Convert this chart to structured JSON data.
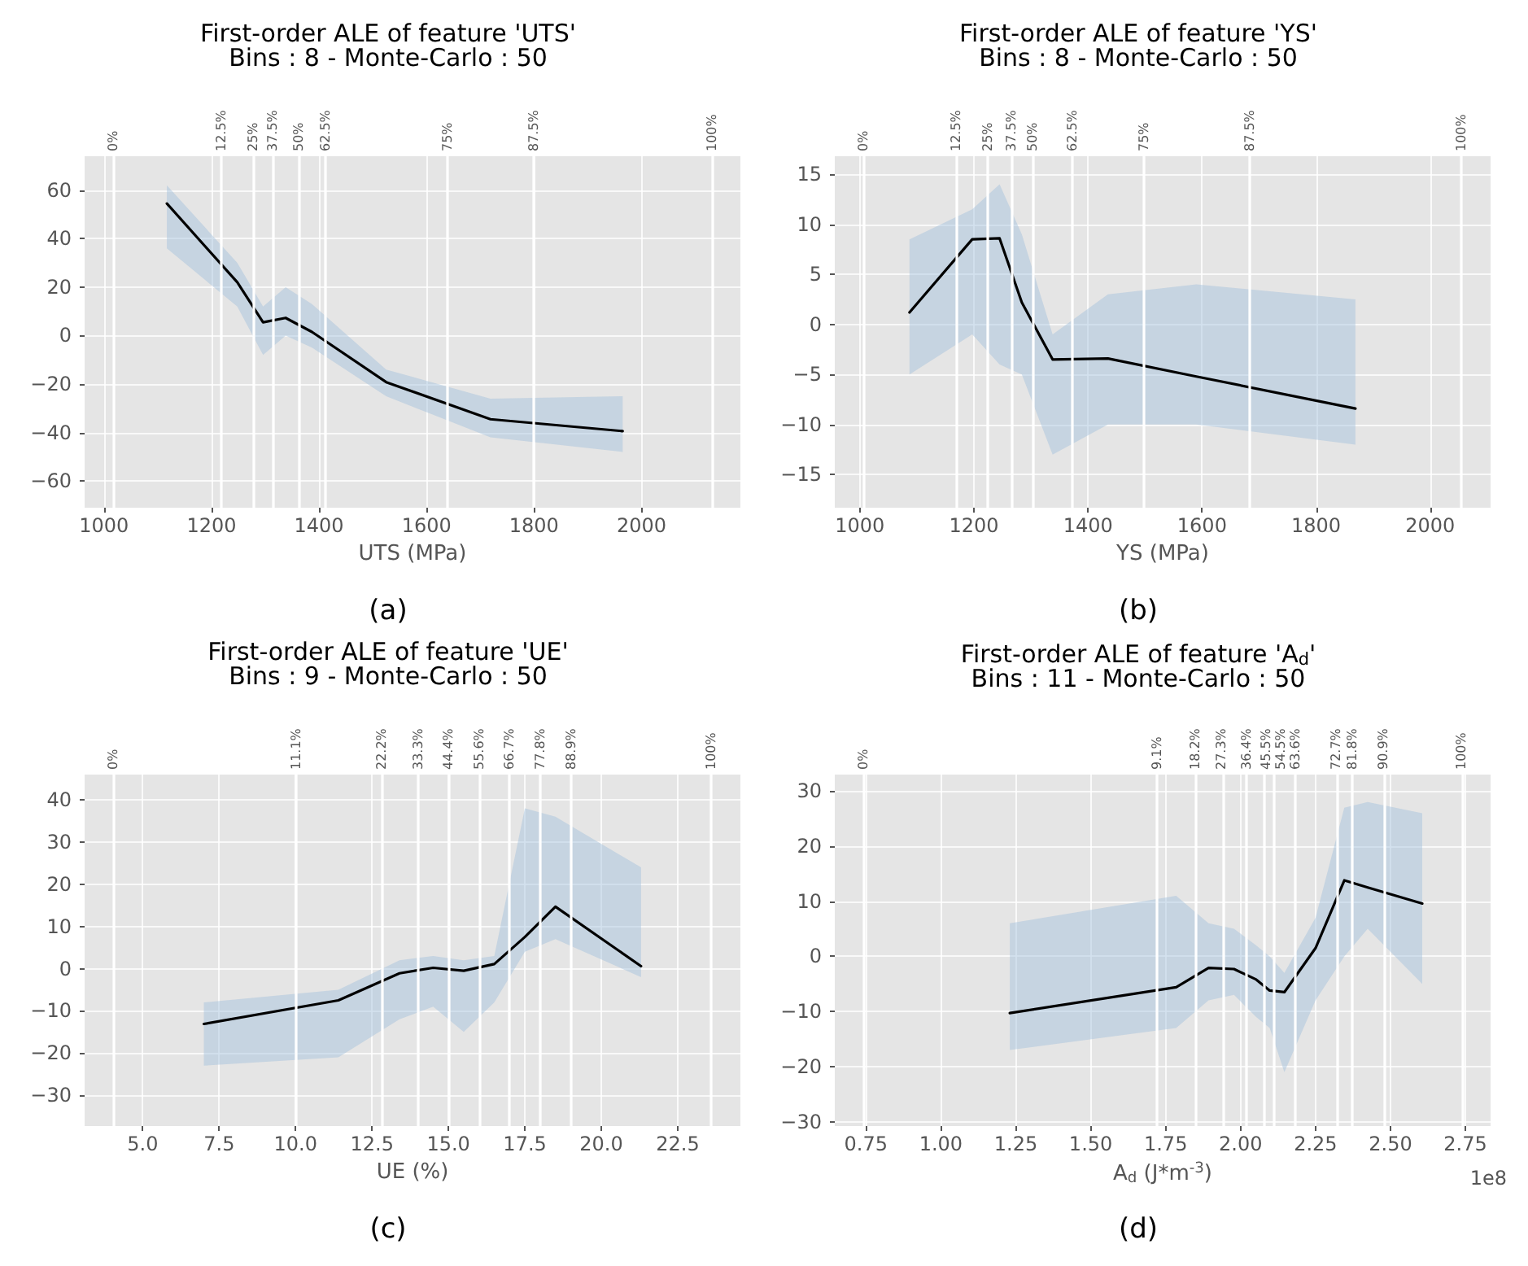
{
  "chart_data": [
    {
      "type": "line",
      "title": "First-order ALE of feature 'UTS'",
      "subtitle": "Bins : 8 - Monte-Carlo : 50",
      "xlabel": "UTS (MPa)",
      "grid": true,
      "xlim": [
        964,
        2184
      ],
      "xticks": [
        1000,
        1200,
        1400,
        1600,
        1800,
        2000
      ],
      "ylim": [
        -71,
        74
      ],
      "yticks": [
        {
          "value": -60,
          "label": "−60"
        },
        {
          "value": -40,
          "label": "−40"
        },
        {
          "value": -20,
          "label": "−20"
        },
        0,
        20,
        40,
        60
      ],
      "ref_lines": [
        {
          "axis": "x",
          "value": 1017,
          "color": "#ffffff"
        },
        {
          "axis": "x",
          "value": 1218,
          "color": "#ffffff"
        },
        {
          "axis": "x",
          "value": 1278,
          "color": "#ffffff"
        },
        {
          "axis": "x",
          "value": 1313,
          "color": "#ffffff"
        },
        {
          "axis": "x",
          "value": 1362,
          "color": "#ffffff"
        },
        {
          "axis": "x",
          "value": 1412,
          "color": "#ffffff"
        },
        {
          "axis": "x",
          "value": 1639,
          "color": "#ffffff"
        },
        {
          "axis": "x",
          "value": 1799,
          "color": "#ffffff"
        },
        {
          "axis": "x",
          "value": 2131,
          "color": "#ffffff"
        }
      ],
      "annotations": [
        "(a)",
        {
          "text": "0%",
          "x": 1017,
          "y": 74
        },
        {
          "text": "12.5%",
          "x": 1218,
          "y": 74
        },
        {
          "text": "25%",
          "x": 1278,
          "y": 74
        },
        {
          "text": "37.5%",
          "x": 1313,
          "y": 74
        },
        {
          "text": "50%",
          "x": 1362,
          "y": 74
        },
        {
          "text": "62.5%",
          "x": 1412,
          "y": 74
        },
        {
          "text": "75%",
          "x": 1639,
          "y": 74
        },
        {
          "text": "87.5%",
          "x": 1799,
          "y": 74
        },
        {
          "text": "100%",
          "x": 2131,
          "y": 74
        }
      ],
      "series": [
        {
          "color": "#000000",
          "x": [
            1117,
            1248,
            1296,
            1338,
            1387,
            1525,
            1719,
            1965
          ],
          "values": [
            54.5,
            22,
            5.5,
            7.3,
            1.5,
            -19.2,
            -34.5,
            -39.4
          ],
          "lower": [
            36,
            12,
            -8,
            0,
            -5,
            -25,
            -42,
            -48
          ],
          "upper": [
            62,
            30,
            12,
            20,
            13,
            -14,
            -26,
            -25
          ]
        }
      ]
    },
    {
      "type": "line",
      "title": "First-order ALE of feature 'YS'",
      "subtitle": "Bins : 8 - Monte-Carlo : 50",
      "xlabel": "YS (MPa)",
      "grid": true,
      "xlim": [
        956,
        2106
      ],
      "xticks": [
        1000,
        1200,
        1400,
        1600,
        1800,
        2000
      ],
      "ylim": [
        -18.3,
        16.8
      ],
      "yticks": [
        {
          "value": -15,
          "label": "−15"
        },
        {
          "value": -10,
          "label": "−10"
        },
        {
          "value": -5,
          "label": "−5"
        },
        0,
        5,
        10,
        15
      ],
      "ref_lines": [
        {
          "axis": "x",
          "value": 1006,
          "color": "#ffffff"
        },
        {
          "axis": "x",
          "value": 1169,
          "color": "#ffffff"
        },
        {
          "axis": "x",
          "value": 1224,
          "color": "#ffffff"
        },
        {
          "axis": "x",
          "value": 1265,
          "color": "#ffffff"
        },
        {
          "axis": "x",
          "value": 1303,
          "color": "#ffffff"
        },
        {
          "axis": "x",
          "value": 1372,
          "color": "#ffffff"
        },
        {
          "axis": "x",
          "value": 1498,
          "color": "#ffffff"
        },
        {
          "axis": "x",
          "value": 1683,
          "color": "#ffffff"
        },
        {
          "axis": "x",
          "value": 2055,
          "color": "#ffffff"
        }
      ],
      "annotations": [
        "(b)",
        {
          "text": "0%",
          "x": 1006,
          "y": 16.8
        },
        {
          "text": "12.5%",
          "x": 1169,
          "y": 16.8
        },
        {
          "text": "25%",
          "x": 1224,
          "y": 16.8
        },
        {
          "text": "37.5%",
          "x": 1265,
          "y": 16.8
        },
        {
          "text": "50%",
          "x": 1303,
          "y": 16.8
        },
        {
          "text": "62.5%",
          "x": 1372,
          "y": 16.8
        },
        {
          "text": "75%",
          "x": 1498,
          "y": 16.8
        },
        {
          "text": "87.5%",
          "x": 1683,
          "y": 16.8
        },
        {
          "text": "100%",
          "x": 2055,
          "y": 16.8
        }
      ],
      "series": [
        {
          "color": "#000000",
          "x": [
            1087,
            1197,
            1245,
            1284,
            1338,
            1435,
            1590,
            1869
          ],
          "values": [
            1.2,
            8.5,
            8.6,
            2.2,
            -3.5,
            -3.4,
            -5.2,
            -8.4
          ],
          "lower": [
            -5,
            -1,
            -4,
            -5,
            -13,
            -10,
            -10,
            -12
          ],
          "upper": [
            8.5,
            11.5,
            14,
            9,
            -1,
            3,
            4,
            2.5
          ]
        }
      ]
    },
    {
      "type": "line",
      "title": "First-order ALE of feature 'UE'",
      "subtitle": "Bins : 9 - Monte-Carlo : 50",
      "xlabel": "UE (%)",
      "grid": true,
      "xlim": [
        3.1,
        24.55
      ],
      "xticks": [
        {
          "value": 5,
          "label": "5.0"
        },
        7.5,
        {
          "value": 10,
          "label": "10.0"
        },
        12.5,
        {
          "value": 15,
          "label": "15.0"
        },
        17.5,
        {
          "value": 20,
          "label": "20.0"
        },
        22.5
      ],
      "ylim": [
        -37.3,
        46
      ],
      "yticks": [
        {
          "value": -30,
          "label": "−30"
        },
        {
          "value": -20,
          "label": "−20"
        },
        {
          "value": -10,
          "label": "−10"
        },
        0,
        10,
        20,
        30,
        40
      ],
      "ref_lines": [
        {
          "axis": "x",
          "value": 4.03,
          "color": "#ffffff"
        },
        {
          "axis": "x",
          "value": 10.02,
          "color": "#ffffff"
        },
        {
          "axis": "x",
          "value": 12.82,
          "color": "#ffffff"
        },
        {
          "axis": "x",
          "value": 14.01,
          "color": "#ffffff"
        },
        {
          "axis": "x",
          "value": 15,
          "color": "#ffffff"
        },
        {
          "axis": "x",
          "value": 16.01,
          "color": "#ffffff"
        },
        {
          "axis": "x",
          "value": 17,
          "color": "#ffffff"
        },
        {
          "axis": "x",
          "value": 18,
          "color": "#ffffff"
        },
        {
          "axis": "x",
          "value": 19.02,
          "color": "#ffffff"
        },
        {
          "axis": "x",
          "value": 23.6,
          "color": "#ffffff"
        }
      ],
      "annotations": [
        "(c)",
        {
          "text": "0%",
          "x": 4.03,
          "y": 46
        },
        {
          "text": "11.1%",
          "x": 10.02,
          "y": 46
        },
        {
          "text": "22.2%",
          "x": 12.82,
          "y": 46
        },
        {
          "text": "33.3%",
          "x": 14.01,
          "y": 46
        },
        {
          "text": "44.4%",
          "x": 15,
          "y": 46
        },
        {
          "text": "55.6%",
          "x": 16.01,
          "y": 46
        },
        {
          "text": "66.7%",
          "x": 17,
          "y": 46
        },
        {
          "text": "77.8%",
          "x": 18,
          "y": 46
        },
        {
          "text": "88.9%",
          "x": 19.02,
          "y": 46
        },
        {
          "text": "100%",
          "x": 23.6,
          "y": 46
        }
      ],
      "series": [
        {
          "color": "#000000",
          "x": [
            7,
            11.4,
            13.4,
            14.5,
            15.5,
            16.5,
            17.5,
            18.5,
            21.3
          ],
          "values": [
            -13.1,
            -7.5,
            -1.1,
            0.2,
            -0.5,
            1.1,
            7.5,
            14.7,
            0.6
          ],
          "lower": [
            -23,
            -21,
            -12,
            -9,
            -15,
            -8,
            4,
            7,
            -2
          ],
          "upper": [
            -8,
            -5,
            2,
            3,
            2,
            3,
            38,
            36,
            24
          ]
        }
      ]
    },
    {
      "type": "line",
      "title": "First-order ALE of feature 'A$_{d}$'",
      "subtitle": "Bins : 11 - Monte-Carlo : 50",
      "xlabel": "A$_{d}$ (J*m$^{-3}$)",
      "grid": true,
      "xlim": [
        0.646,
        2.834
      ],
      "xticks": [
        0.75,
        {
          "value": 1,
          "label": "1.00"
        },
        1.25,
        {
          "value": 1.5,
          "label": "1.50"
        },
        1.75,
        {
          "value": 2,
          "label": "2.00"
        },
        2.25,
        {
          "value": 2.5,
          "label": "2.50"
        },
        2.75
      ],
      "ylim": [
        -30.8,
        33
      ],
      "yticks": [
        {
          "value": -30,
          "label": "−30"
        },
        {
          "value": -20,
          "label": "−20"
        },
        {
          "value": -10,
          "label": "−10"
        },
        0,
        10,
        20,
        30
      ],
      "ref_lines": [
        {
          "axis": "x",
          "value": 0.741,
          "color": "#ffffff"
        },
        {
          "axis": "x",
          "value": 1.72,
          "color": "#ffffff"
        },
        {
          "axis": "x",
          "value": 1.849,
          "color": "#ffffff"
        },
        {
          "axis": "x",
          "value": 1.936,
          "color": "#ffffff"
        },
        {
          "axis": "x",
          "value": 2.02,
          "color": "#ffffff"
        },
        {
          "axis": "x",
          "value": 2.084,
          "color": "#ffffff"
        },
        {
          "axis": "x",
          "value": 2.11,
          "color": "#ffffff"
        },
        {
          "axis": "x",
          "value": 2.181,
          "color": "#ffffff"
        },
        {
          "axis": "x",
          "value": 2.319,
          "color": "#ffffff"
        },
        {
          "axis": "x",
          "value": 2.373,
          "color": "#ffffff"
        },
        {
          "axis": "x",
          "value": 2.475,
          "color": "#ffffff"
        },
        {
          "axis": "x",
          "value": 2.736,
          "color": "#ffffff"
        }
      ],
      "annotations": [
        "(d)",
        "1e8",
        {
          "text": "0%",
          "x": 0.741,
          "y": 33
        },
        {
          "text": "9.1%",
          "x": 1.72,
          "y": 33
        },
        {
          "text": "18.2%",
          "x": 1.849,
          "y": 33
        },
        {
          "text": "27.3%",
          "x": 1.936,
          "y": 33
        },
        {
          "text": "36.4%",
          "x": 2.02,
          "y": 33
        },
        {
          "text": "45.5%",
          "x": 2.084,
          "y": 33
        },
        {
          "text": "54.5%",
          "x": 2.11,
          "y": 33
        },
        {
          "text": "63.6%",
          "x": 2.181,
          "y": 33
        },
        {
          "text": "72.7%",
          "x": 2.319,
          "y": 33
        },
        {
          "text": "81.8%",
          "x": 2.373,
          "y": 33
        },
        {
          "text": "90.9%",
          "x": 2.475,
          "y": 33
        },
        {
          "text": "100%",
          "x": 2.736,
          "y": 33
        }
      ],
      "series": [
        {
          "color": "#000000",
          "x": [
            1.23,
            1.785,
            1.893,
            1.978,
            2.052,
            2.097,
            2.146,
            2.25,
            2.346,
            2.424,
            2.606
          ],
          "values": [
            -10.3,
            -5.6,
            -2.1,
            -2.3,
            -4.2,
            -6.2,
            -6.5,
            1.5,
            13.8,
            12.5,
            9.6
          ],
          "lower": [
            -17,
            -13,
            -8,
            -7,
            -11,
            -13,
            -21,
            -8,
            0,
            5,
            -5
          ],
          "upper": [
            6,
            11,
            6,
            5,
            2,
            0,
            -3,
            7,
            27,
            28,
            26
          ]
        }
      ]
    }
  ]
}
